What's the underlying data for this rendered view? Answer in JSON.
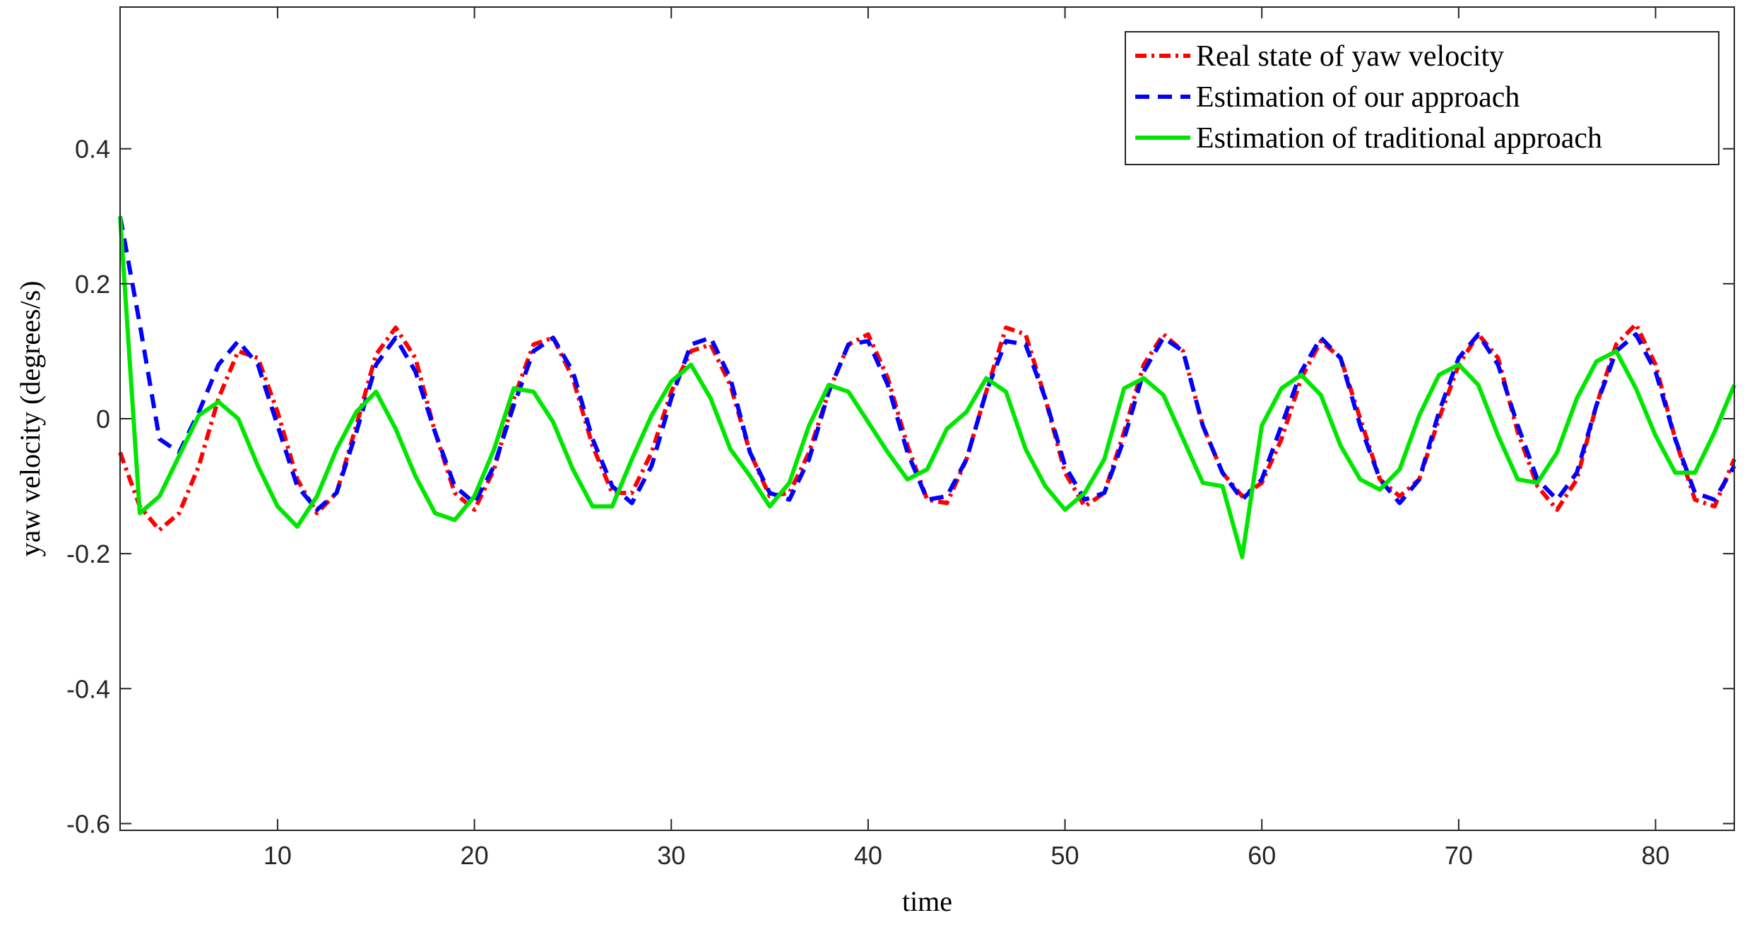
{
  "chart_data": {
    "type": "line",
    "title": "",
    "xlabel": "time",
    "ylabel": "yaw velocity (degrees/s)",
    "xlim": [
      2,
      84
    ],
    "ylim": [
      -0.61,
      0.61
    ],
    "xticks": [
      10,
      20,
      30,
      40,
      50,
      60,
      70,
      80
    ],
    "xtick_labels": [
      "10",
      "20",
      "30",
      "40",
      "50",
      "60",
      "70",
      "80"
    ],
    "yticks": [
      0.4,
      0.2,
      0,
      -0.2,
      -0.4,
      -0.6
    ],
    "ytick_labels": [
      "0.4",
      "0.2",
      "0",
      "-0.2",
      "-0.4",
      "-0.6"
    ],
    "grid": false,
    "legend_position": "top-right",
    "x": [
      2,
      3,
      4,
      5,
      6,
      7,
      8,
      9,
      10,
      11,
      12,
      13,
      14,
      15,
      16,
      17,
      18,
      19,
      20,
      21,
      22,
      23,
      24,
      25,
      26,
      27,
      28,
      29,
      30,
      31,
      32,
      33,
      34,
      35,
      36,
      37,
      38,
      39,
      40,
      41,
      42,
      43,
      44,
      45,
      46,
      47,
      48,
      49,
      50,
      51,
      52,
      53,
      54,
      55,
      56,
      57,
      58,
      59,
      60,
      61,
      62,
      63,
      64,
      65,
      66,
      67,
      68,
      69,
      70,
      71,
      72,
      73,
      74,
      75,
      76,
      77,
      78,
      79,
      80,
      81,
      82,
      83,
      84
    ],
    "series": [
      {
        "name": "Real state of yaw velocity",
        "color": "#ff0000",
        "dash": "dashdot",
        "values": [
          -0.05,
          -0.13,
          -0.165,
          -0.14,
          -0.07,
          0.03,
          0.1,
          0.09,
          0.01,
          -0.09,
          -0.14,
          -0.11,
          -0.01,
          0.095,
          0.135,
          0.09,
          -0.02,
          -0.11,
          -0.135,
          -0.075,
          0.03,
          0.11,
          0.12,
          0.06,
          -0.04,
          -0.11,
          -0.11,
          -0.05,
          0.04,
          0.1,
          0.11,
          0.05,
          -0.05,
          -0.115,
          -0.11,
          -0.05,
          0.04,
          0.11,
          0.125,
          0.06,
          -0.04,
          -0.12,
          -0.125,
          -0.06,
          0.04,
          0.135,
          0.125,
          0.03,
          -0.08,
          -0.13,
          -0.11,
          -0.02,
          0.08,
          0.125,
          0.1,
          -0.01,
          -0.08,
          -0.115,
          -0.095,
          -0.03,
          0.06,
          0.115,
          0.09,
          0.0,
          -0.09,
          -0.115,
          -0.09,
          0.0,
          0.08,
          0.125,
          0.09,
          -0.02,
          -0.1,
          -0.135,
          -0.09,
          0.02,
          0.11,
          0.14,
          0.08,
          -0.03,
          -0.12,
          -0.13,
          -0.06
        ]
      },
      {
        "name": "Estimation of our approach",
        "color": "#0000ff",
        "dash": "dashed",
        "values": [
          0.3,
          0.14,
          -0.03,
          -0.05,
          0.01,
          0.08,
          0.115,
          0.08,
          -0.01,
          -0.1,
          -0.135,
          -0.11,
          -0.02,
          0.08,
          0.12,
          0.07,
          -0.02,
          -0.1,
          -0.125,
          -0.07,
          0.02,
          0.1,
          0.12,
          0.07,
          -0.03,
          -0.1,
          -0.125,
          -0.07,
          0.03,
          0.11,
          0.12,
          0.06,
          -0.05,
          -0.11,
          -0.12,
          -0.06,
          0.04,
          0.11,
          0.115,
          0.05,
          -0.05,
          -0.12,
          -0.115,
          -0.06,
          0.04,
          0.115,
          0.11,
          0.03,
          -0.07,
          -0.12,
          -0.11,
          -0.03,
          0.07,
          0.12,
          0.1,
          -0.01,
          -0.08,
          -0.12,
          -0.09,
          -0.01,
          0.07,
          0.12,
          0.09,
          -0.01,
          -0.09,
          -0.125,
          -0.09,
          0.01,
          0.09,
          0.125,
          0.08,
          -0.01,
          -0.09,
          -0.12,
          -0.08,
          0.02,
          0.1,
          0.125,
          0.07,
          -0.03,
          -0.11,
          -0.12,
          -0.07
        ]
      },
      {
        "name": "Estimation of traditional approach",
        "color": "#00e600",
        "dash": "solid",
        "values": [
          0.3,
          -0.14,
          -0.115,
          -0.055,
          0.005,
          0.025,
          0.0,
          -0.07,
          -0.13,
          -0.16,
          -0.115,
          -0.045,
          0.01,
          0.04,
          -0.015,
          -0.085,
          -0.14,
          -0.15,
          -0.115,
          -0.045,
          0.045,
          0.04,
          -0.005,
          -0.075,
          -0.13,
          -0.13,
          -0.06,
          0.005,
          0.055,
          0.08,
          0.03,
          -0.045,
          -0.085,
          -0.13,
          -0.095,
          -0.01,
          0.05,
          0.04,
          -0.005,
          -0.05,
          -0.09,
          -0.075,
          -0.015,
          0.01,
          0.06,
          0.04,
          -0.045,
          -0.1,
          -0.135,
          -0.11,
          -0.06,
          0.045,
          0.06,
          0.035,
          -0.03,
          -0.095,
          -0.1,
          -0.205,
          -0.01,
          0.045,
          0.065,
          0.035,
          -0.04,
          -0.09,
          -0.105,
          -0.075,
          0.005,
          0.065,
          0.08,
          0.05,
          -0.025,
          -0.09,
          -0.095,
          -0.05,
          0.03,
          0.085,
          0.1,
          0.045,
          -0.025,
          -0.08,
          -0.08,
          -0.02,
          0.05
        ]
      }
    ]
  }
}
